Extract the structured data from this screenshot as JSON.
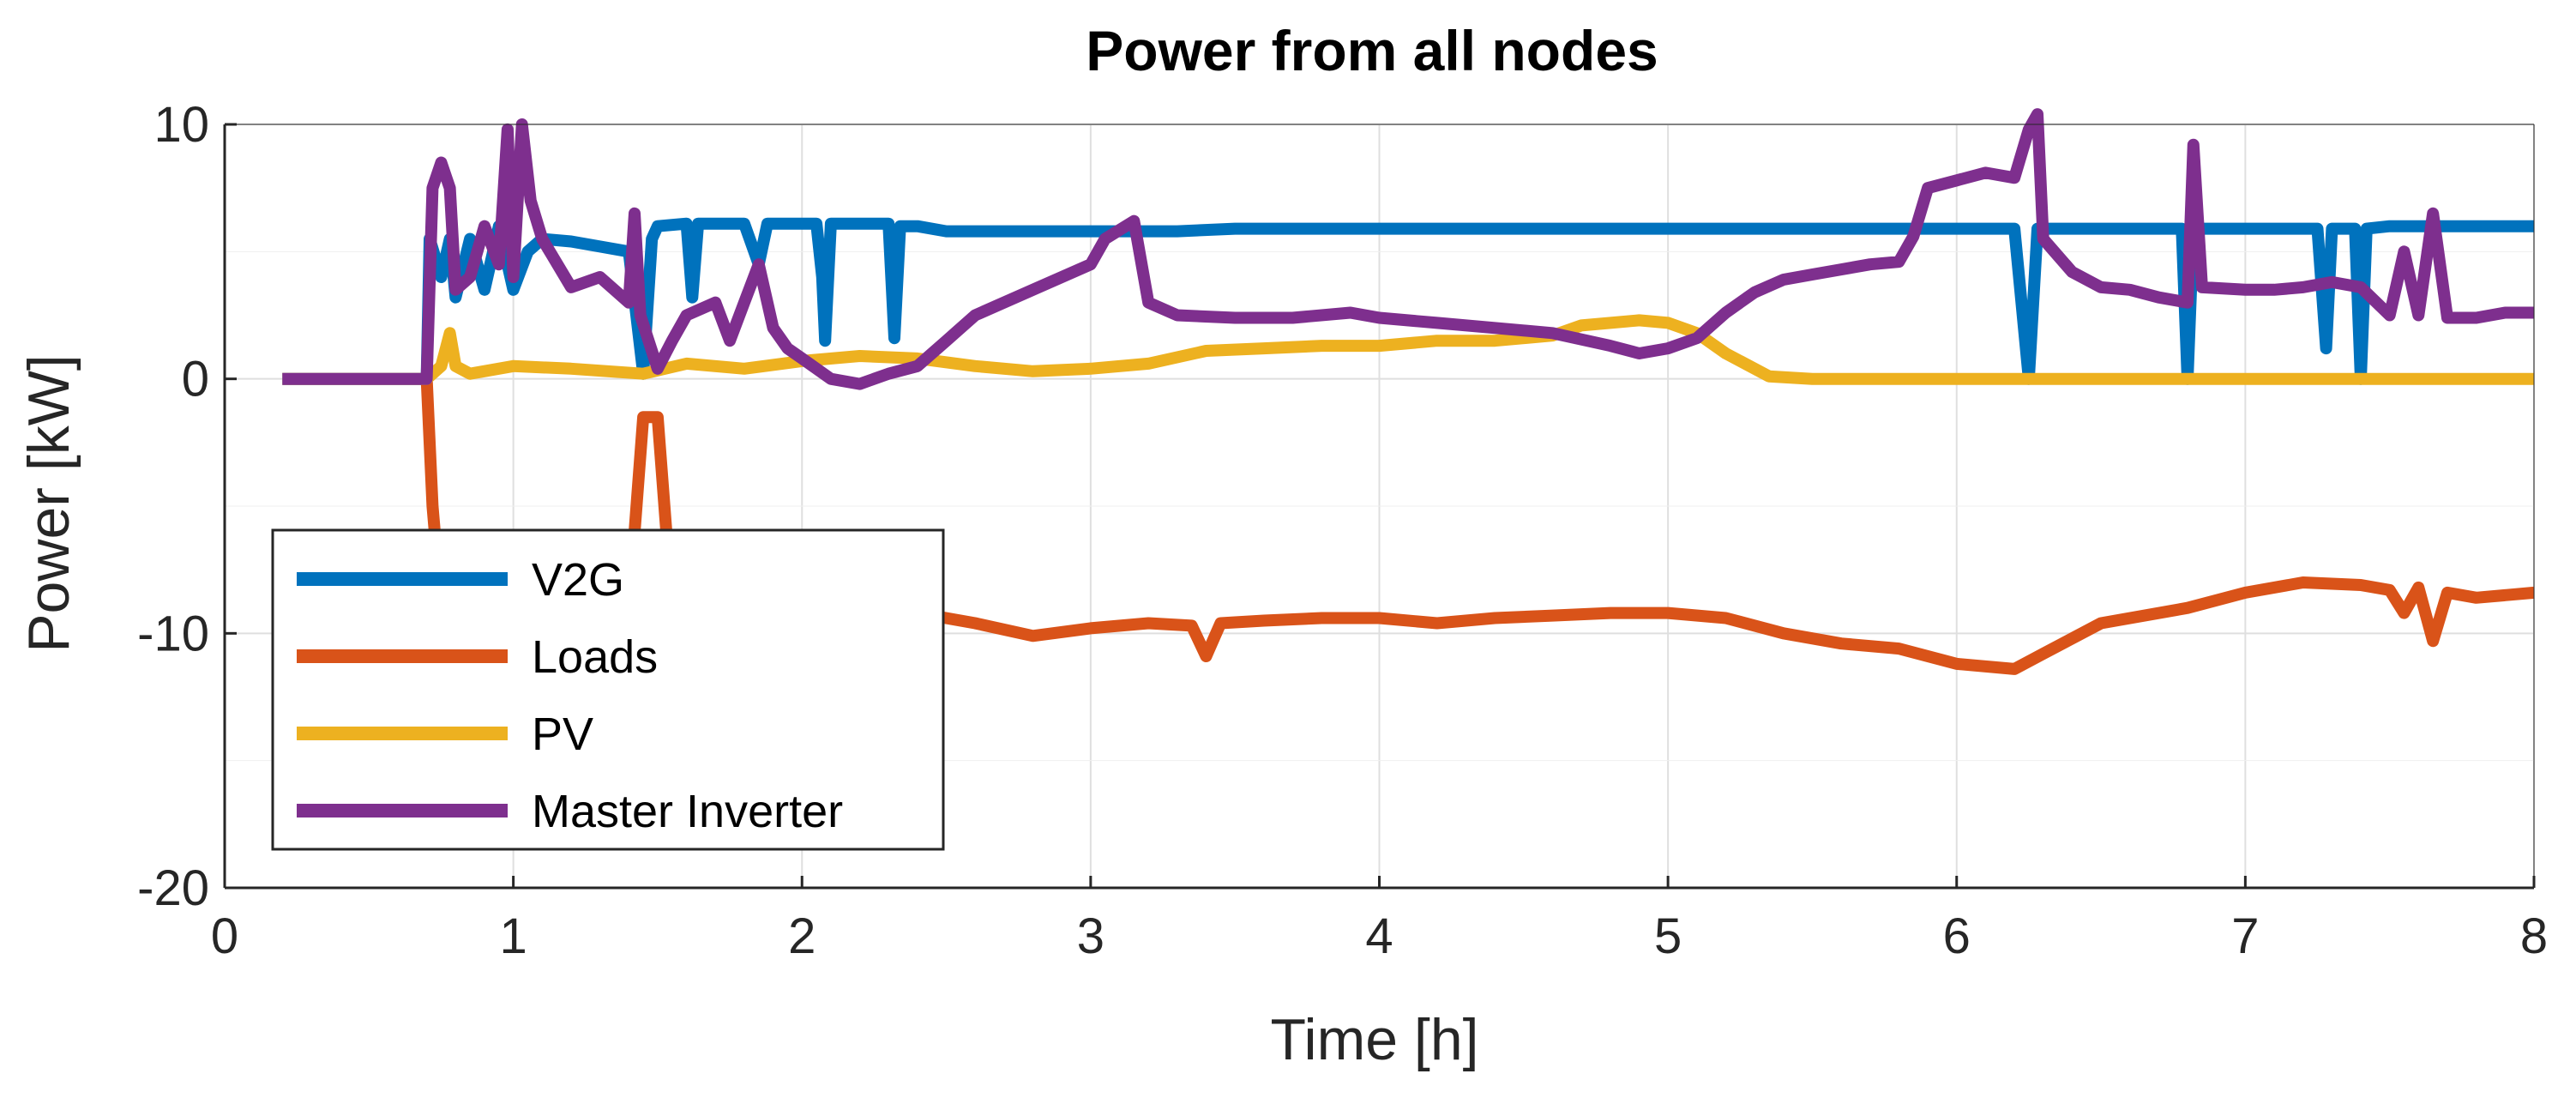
{
  "chart_data": {
    "type": "line",
    "title": "Power from all nodes",
    "xlabel": "Time [h]",
    "ylabel": "Power [kW]",
    "xlim": [
      0,
      8
    ],
    "ylim": [
      -20,
      10
    ],
    "xticks": [
      0,
      1,
      2,
      3,
      4,
      5,
      6,
      7,
      8
    ],
    "yticks": [
      -20,
      -10,
      0,
      10
    ],
    "grid": true,
    "legend_position": "bottom-left",
    "series": [
      {
        "name": "V2G",
        "color": "#0072BD",
        "points": [
          [
            0.2,
            0
          ],
          [
            0.7,
            0
          ],
          [
            0.71,
            5.5
          ],
          [
            0.75,
            4.0
          ],
          [
            0.78,
            5.5
          ],
          [
            0.8,
            3.2
          ],
          [
            0.85,
            5.5
          ],
          [
            0.9,
            3.5
          ],
          [
            0.95,
            6.0
          ],
          [
            1.0,
            3.5
          ],
          [
            1.05,
            5.0
          ],
          [
            1.1,
            5.5
          ],
          [
            1.2,
            5.4
          ],
          [
            1.3,
            5.2
          ],
          [
            1.4,
            5.0
          ],
          [
            1.45,
            0.2
          ],
          [
            1.48,
            5.5
          ],
          [
            1.5,
            6.0
          ],
          [
            1.6,
            6.1
          ],
          [
            1.62,
            3.2
          ],
          [
            1.64,
            6.1
          ],
          [
            1.8,
            6.1
          ],
          [
            1.85,
            4.5
          ],
          [
            1.88,
            6.1
          ],
          [
            2.05,
            6.1
          ],
          [
            2.07,
            4.0
          ],
          [
            2.08,
            1.5
          ],
          [
            2.1,
            6.1
          ],
          [
            2.3,
            6.1
          ],
          [
            2.32,
            1.6
          ],
          [
            2.34,
            6.0
          ],
          [
            2.4,
            6.0
          ],
          [
            2.5,
            5.8
          ],
          [
            3.0,
            5.8
          ],
          [
            3.3,
            5.8
          ],
          [
            3.5,
            5.9
          ],
          [
            4.0,
            5.9
          ],
          [
            4.5,
            5.9
          ],
          [
            5.0,
            5.9
          ],
          [
            5.5,
            5.9
          ],
          [
            6.0,
            5.9
          ],
          [
            6.2,
            5.9
          ],
          [
            6.25,
            0.0
          ],
          [
            6.28,
            5.9
          ],
          [
            6.5,
            5.9
          ],
          [
            6.78,
            5.9
          ],
          [
            6.8,
            0.0
          ],
          [
            6.82,
            5.9
          ],
          [
            7.0,
            5.9
          ],
          [
            7.25,
            5.9
          ],
          [
            7.28,
            1.2
          ],
          [
            7.3,
            5.9
          ],
          [
            7.38,
            5.9
          ],
          [
            7.4,
            0.0
          ],
          [
            7.42,
            5.9
          ],
          [
            7.5,
            6.0
          ],
          [
            7.7,
            6.0
          ],
          [
            8.0,
            6.0
          ]
        ]
      },
      {
        "name": "Loads",
        "color": "#D95319",
        "points": [
          [
            0.7,
            0
          ],
          [
            0.72,
            -5.0
          ],
          [
            0.75,
            -9.0
          ],
          [
            0.85,
            -9.0
          ],
          [
            1.0,
            -9.0
          ],
          [
            1.2,
            -9.0
          ],
          [
            1.4,
            -9.0
          ],
          [
            1.45,
            -1.5
          ],
          [
            1.5,
            -1.5
          ],
          [
            1.55,
            -9.0
          ],
          [
            1.8,
            -9.0
          ],
          [
            2.0,
            -9.0
          ],
          [
            2.4,
            -9.2
          ],
          [
            2.6,
            -9.6
          ],
          [
            2.8,
            -10.1
          ],
          [
            3.0,
            -9.8
          ],
          [
            3.2,
            -9.6
          ],
          [
            3.35,
            -9.7
          ],
          [
            3.4,
            -10.9
          ],
          [
            3.45,
            -9.6
          ],
          [
            3.6,
            -9.5
          ],
          [
            3.8,
            -9.4
          ],
          [
            4.0,
            -9.4
          ],
          [
            4.2,
            -9.6
          ],
          [
            4.4,
            -9.4
          ],
          [
            4.6,
            -9.3
          ],
          [
            4.8,
            -9.2
          ],
          [
            5.0,
            -9.2
          ],
          [
            5.2,
            -9.4
          ],
          [
            5.4,
            -10.0
          ],
          [
            5.6,
            -10.4
          ],
          [
            5.8,
            -10.6
          ],
          [
            6.0,
            -11.2
          ],
          [
            6.2,
            -11.4
          ],
          [
            6.3,
            -10.8
          ],
          [
            6.5,
            -9.6
          ],
          [
            6.8,
            -9.0
          ],
          [
            7.0,
            -8.4
          ],
          [
            7.2,
            -8.0
          ],
          [
            7.4,
            -8.1
          ],
          [
            7.5,
            -8.3
          ],
          [
            7.55,
            -9.2
          ],
          [
            7.6,
            -8.2
          ],
          [
            7.65,
            -10.3
          ],
          [
            7.7,
            -8.4
          ],
          [
            7.8,
            -8.6
          ],
          [
            8.0,
            -8.4
          ]
        ]
      },
      {
        "name": "PV",
        "color": "#EDB120",
        "points": [
          [
            0.2,
            0
          ],
          [
            0.7,
            0
          ],
          [
            0.75,
            0.5
          ],
          [
            0.78,
            1.8
          ],
          [
            0.8,
            0.5
          ],
          [
            0.85,
            0.2
          ],
          [
            1.0,
            0.5
          ],
          [
            1.2,
            0.4
          ],
          [
            1.45,
            0.2
          ],
          [
            1.6,
            0.6
          ],
          [
            1.8,
            0.4
          ],
          [
            2.0,
            0.7
          ],
          [
            2.2,
            0.9
          ],
          [
            2.4,
            0.8
          ],
          [
            2.6,
            0.5
          ],
          [
            2.8,
            0.3
          ],
          [
            3.0,
            0.4
          ],
          [
            3.2,
            0.6
          ],
          [
            3.4,
            1.1
          ],
          [
            3.6,
            1.2
          ],
          [
            3.8,
            1.3
          ],
          [
            4.0,
            1.3
          ],
          [
            4.2,
            1.5
          ],
          [
            4.4,
            1.5
          ],
          [
            4.6,
            1.7
          ],
          [
            4.7,
            2.1
          ],
          [
            4.9,
            2.3
          ],
          [
            5.0,
            2.2
          ],
          [
            5.1,
            1.8
          ],
          [
            5.2,
            1.0
          ],
          [
            5.35,
            0.1
          ],
          [
            5.5,
            0.0
          ],
          [
            6.0,
            0.0
          ],
          [
            7.0,
            0.0
          ],
          [
            8.0,
            0.0
          ]
        ]
      },
      {
        "name": "Master Inverter",
        "color": "#7E2F8E",
        "points": [
          [
            0.2,
            0
          ],
          [
            0.7,
            0
          ],
          [
            0.72,
            7.5
          ],
          [
            0.75,
            8.5
          ],
          [
            0.78,
            7.5
          ],
          [
            0.8,
            3.5
          ],
          [
            0.85,
            4.0
          ],
          [
            0.9,
            6.0
          ],
          [
            0.95,
            4.5
          ],
          [
            0.98,
            9.8
          ],
          [
            1.0,
            4.0
          ],
          [
            1.03,
            10.0
          ],
          [
            1.06,
            7.0
          ],
          [
            1.1,
            5.5
          ],
          [
            1.2,
            3.6
          ],
          [
            1.3,
            4.0
          ],
          [
            1.4,
            3.0
          ],
          [
            1.42,
            6.5
          ],
          [
            1.44,
            2.5
          ],
          [
            1.5,
            0.4
          ],
          [
            1.55,
            1.5
          ],
          [
            1.6,
            2.5
          ],
          [
            1.7,
            3.0
          ],
          [
            1.75,
            1.5
          ],
          [
            1.8,
            3.0
          ],
          [
            1.85,
            4.5
          ],
          [
            1.9,
            2.0
          ],
          [
            1.95,
            1.2
          ],
          [
            2.0,
            0.8
          ],
          [
            2.1,
            0.0
          ],
          [
            2.2,
            -0.2
          ],
          [
            2.3,
            0.2
          ],
          [
            2.4,
            0.5
          ],
          [
            2.5,
            1.5
          ],
          [
            2.6,
            2.5
          ],
          [
            2.8,
            3.5
          ],
          [
            3.0,
            4.5
          ],
          [
            3.05,
            5.5
          ],
          [
            3.15,
            6.2
          ],
          [
            3.2,
            3.0
          ],
          [
            3.3,
            2.5
          ],
          [
            3.5,
            2.4
          ],
          [
            3.7,
            2.4
          ],
          [
            3.9,
            2.6
          ],
          [
            4.0,
            2.4
          ],
          [
            4.2,
            2.2
          ],
          [
            4.4,
            2.0
          ],
          [
            4.6,
            1.8
          ],
          [
            4.8,
            1.3
          ],
          [
            4.9,
            1.0
          ],
          [
            5.0,
            1.2
          ],
          [
            5.1,
            1.6
          ],
          [
            5.2,
            2.6
          ],
          [
            5.3,
            3.4
          ],
          [
            5.4,
            3.9
          ],
          [
            5.5,
            4.1
          ],
          [
            5.6,
            4.3
          ],
          [
            5.7,
            4.5
          ],
          [
            5.8,
            4.6
          ],
          [
            5.85,
            5.6
          ],
          [
            5.9,
            7.5
          ],
          [
            6.0,
            7.8
          ],
          [
            6.1,
            8.1
          ],
          [
            6.2,
            7.9
          ],
          [
            6.25,
            9.8
          ],
          [
            6.28,
            10.4
          ],
          [
            6.3,
            5.5
          ],
          [
            6.4,
            4.2
          ],
          [
            6.5,
            3.6
          ],
          [
            6.6,
            3.5
          ],
          [
            6.7,
            3.2
          ],
          [
            6.8,
            3.0
          ],
          [
            6.82,
            9.2
          ],
          [
            6.85,
            3.6
          ],
          [
            7.0,
            3.5
          ],
          [
            7.1,
            3.5
          ],
          [
            7.2,
            3.6
          ],
          [
            7.3,
            3.8
          ],
          [
            7.4,
            3.6
          ],
          [
            7.5,
            2.5
          ],
          [
            7.55,
            5.0
          ],
          [
            7.6,
            2.5
          ],
          [
            7.65,
            6.5
          ],
          [
            7.7,
            2.4
          ],
          [
            7.8,
            2.4
          ],
          [
            7.9,
            2.6
          ],
          [
            8.0,
            2.6
          ]
        ]
      }
    ]
  }
}
